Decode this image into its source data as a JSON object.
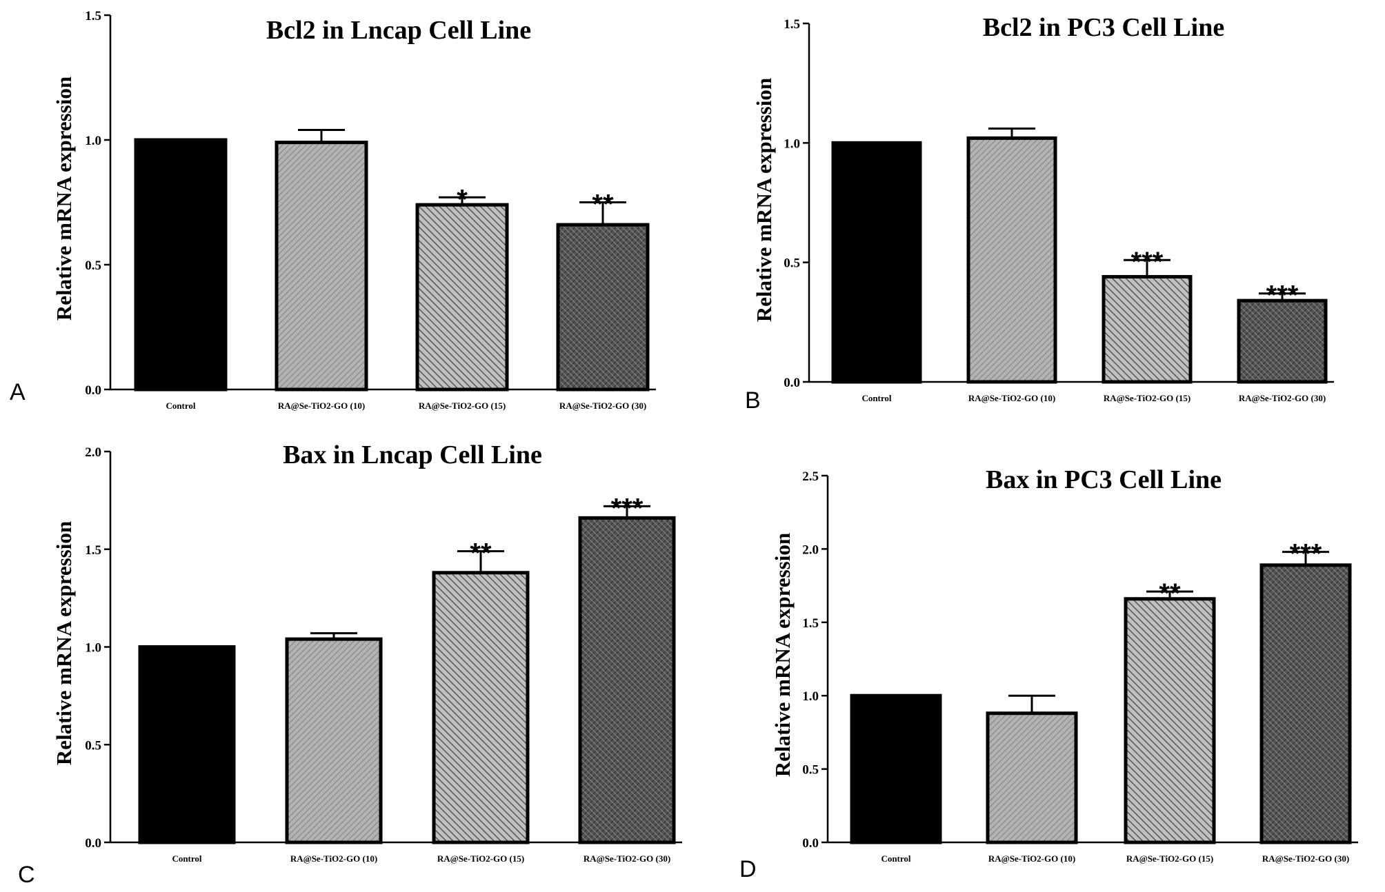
{
  "chart_data": [
    {
      "type": "bar",
      "panel": "A",
      "title": "Bcl2 in Lncap Cell Line",
      "ylabel": "Relative mRNA expression",
      "xlabel": "",
      "ylim": [
        0,
        1.5
      ],
      "yticks": [
        "0.0",
        "0.5",
        "1.0",
        "1.5"
      ],
      "categories": [
        "Control",
        "RA@Se-TiO2-GO (10)",
        "RA@Se-TiO2-GO (15)",
        "RA@Se-TiO2-GO (30)"
      ],
      "values": [
        1.0,
        0.99,
        0.74,
        0.66
      ],
      "errors": [
        0,
        0.05,
        0.03,
        0.09
      ],
      "significance": [
        "",
        "",
        "*",
        "**"
      ]
    },
    {
      "type": "bar",
      "panel": "B",
      "title": "Bcl2 in PC3 Cell Line",
      "ylabel": "Relative mRNA expression",
      "xlabel": "",
      "ylim": [
        0,
        1.5
      ],
      "yticks": [
        "0.0",
        "0.5",
        "1.0",
        "1.5"
      ],
      "categories": [
        "Control",
        "RA@Se-TiO2-GO (10)",
        "RA@Se-TiO2-GO (15)",
        "RA@Se-TiO2-GO (30)"
      ],
      "values": [
        1.0,
        1.02,
        0.44,
        0.34
      ],
      "errors": [
        0,
        0.04,
        0.07,
        0.03
      ],
      "significance": [
        "",
        "",
        "***",
        "***"
      ]
    },
    {
      "type": "bar",
      "panel": "C",
      "title": "Bax in Lncap Cell Line",
      "ylabel": "Relative mRNA expression",
      "xlabel": "",
      "ylim": [
        0,
        2.0
      ],
      "yticks": [
        "0.0",
        "0.5",
        "1.0",
        "1.5",
        "2.0"
      ],
      "categories": [
        "Control",
        "RA@Se-TiO2-GO (10)",
        "RA@Se-TiO2-GO (15)",
        "RA@Se-TiO2-GO (30)"
      ],
      "values": [
        1.0,
        1.04,
        1.38,
        1.66
      ],
      "errors": [
        0,
        0.03,
        0.11,
        0.06
      ],
      "significance": [
        "",
        "",
        "**",
        "***"
      ]
    },
    {
      "type": "bar",
      "panel": "D",
      "title": "Bax in PC3 Cell Line",
      "ylabel": "Relative mRNA expression",
      "xlabel": "",
      "ylim": [
        0,
        2.5
      ],
      "yticks": [
        "0.0",
        "0.5",
        "1.0",
        "1.5",
        "2.0",
        "2.5"
      ],
      "categories": [
        "Control",
        "RA@Se-TiO2-GO (10)",
        "RA@Se-TiO2-GO (15)",
        "RA@Se-TiO2-GO (30)"
      ],
      "values": [
        1.0,
        0.88,
        1.66,
        1.89
      ],
      "errors": [
        0,
        0.12,
        0.05,
        0.09
      ],
      "significance": [
        "",
        "",
        "**",
        "***"
      ]
    }
  ],
  "colors": {
    "control": "#000000",
    "dose10": "#a3a3a3",
    "dose15": "#8a8a8a",
    "dose30": "#4d4d4d",
    "outline": "#000000"
  }
}
